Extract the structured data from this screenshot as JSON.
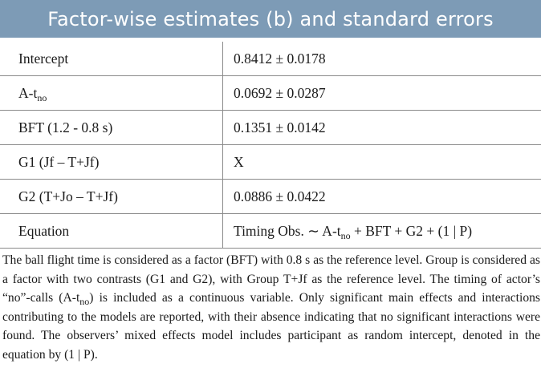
{
  "table": {
    "title": "Factor-wise estimates (b) and standard errors",
    "rows": [
      {
        "factor": "Intercept",
        "estimate": "0.8412 ± 0.0178"
      },
      {
        "factor_main": "A-t",
        "factor_sub": "no",
        "estimate": "0.0692 ± 0.0287"
      },
      {
        "factor": "BFT (1.2 - 0.8 s)",
        "estimate": "0.1351 ± 0.0142"
      },
      {
        "factor": "G1 (Jf – T+Jf)",
        "estimate": "X"
      },
      {
        "factor": "G2 (T+Jo – T+Jf)",
        "estimate": "0.0886 ± 0.0422"
      },
      {
        "factor": "Equation",
        "equation_prefix": "Timing Obs. ∼ A-t",
        "equation_sub": "no",
        "equation_suffix": " + BFT + G2 + (1 | P)"
      }
    ]
  },
  "footnote": {
    "part1": "The ball flight time is considered as a factor (BFT) with 0.8 s as the reference level. Group is considered as a factor with two contrasts (G1 and G2), with Group T+Jf as the reference level. The timing of actor’s “no”-calls (A-t",
    "sub": "no",
    "part2": ") is included as a continuous variable. Only significant main effects and interactions contributing to the models are reported, with their absence indicating that no significant interactions were found. The observers’ mixed effects model includes participant as random intercept, denoted in the equation by (1 | P)."
  }
}
